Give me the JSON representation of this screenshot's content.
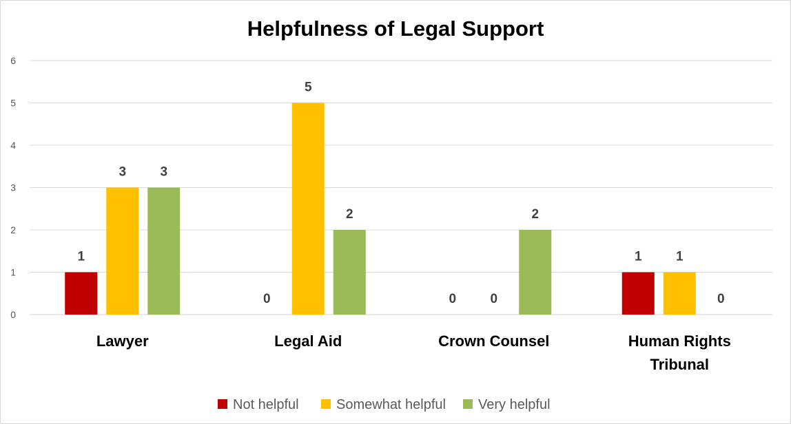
{
  "chart_data": {
    "type": "bar",
    "title": "Helpfulness of Legal Support",
    "categories": [
      [
        "Lawyer"
      ],
      [
        "Legal Aid"
      ],
      [
        "Crown Counsel"
      ],
      [
        "Human Rights",
        "Tribunal"
      ]
    ],
    "series": [
      {
        "name": "Not helpful",
        "color": "#c00000",
        "values": [
          1,
          0,
          0,
          1
        ]
      },
      {
        "name": "Somewhat helpful",
        "color": "#ffc000",
        "values": [
          3,
          5,
          0,
          1
        ]
      },
      {
        "name": "Very helpful",
        "color": "#9bbb59",
        "values": [
          3,
          2,
          2,
          0
        ]
      }
    ],
    "ylim": [
      0,
      6
    ],
    "yticks": [
      "0",
      "1",
      "2",
      "3",
      "4",
      "5",
      "6"
    ],
    "grid": true,
    "legend": "bottom",
    "data_labels": true
  }
}
